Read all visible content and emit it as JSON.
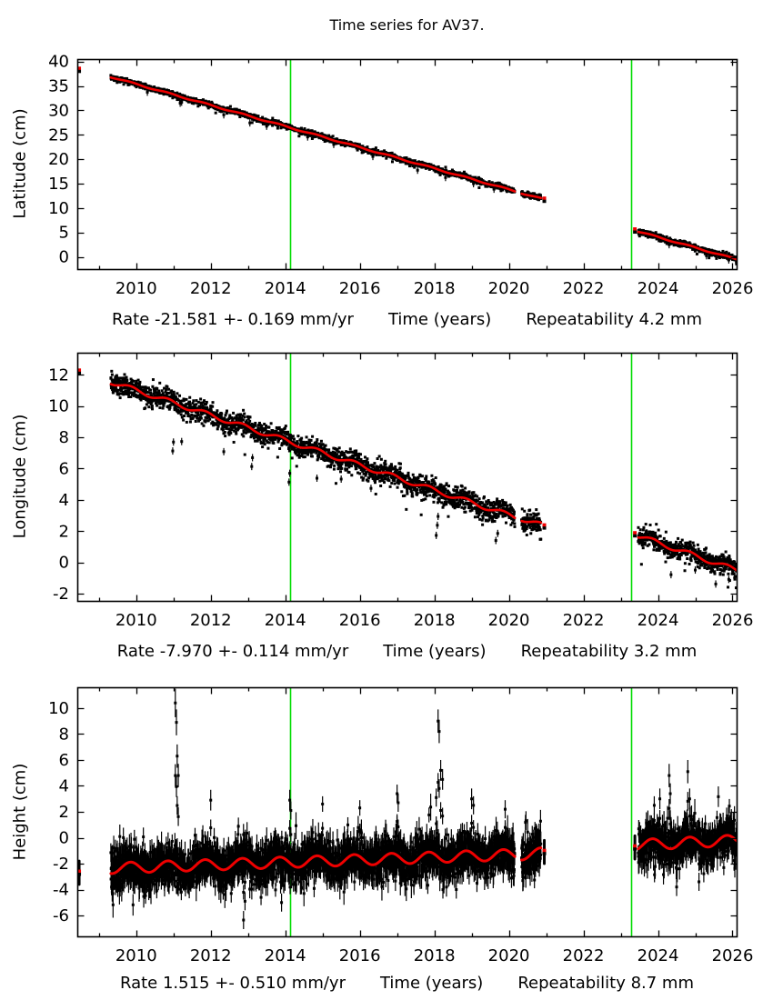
{
  "page": {
    "title": "Time series for AV37."
  },
  "colors": {
    "background": "#ffffff",
    "marker": "#000000",
    "trend": "#ee0000",
    "event_line": "#00dc00",
    "axis": "#000000"
  },
  "chart_data": [
    {
      "type": "scatter",
      "name": "latitude",
      "ylabel": "Latitude (cm)",
      "xlabel": "Time (years)",
      "footer": {
        "rate": "Rate -21.581 +- 0.169 mm/yr",
        "xlabel": "Time (years)",
        "repeatability": "Repeatability 4.2 mm"
      },
      "xlim": [
        2008.42,
        2026.11
      ],
      "ylim": [
        -2.5,
        40.5
      ],
      "xticks": [
        2010,
        2012,
        2014,
        2016,
        2018,
        2020,
        2022,
        2024,
        2026
      ],
      "x_minor_interval": 1,
      "yticks": [
        0,
        5,
        10,
        15,
        20,
        25,
        30,
        35,
        40
      ],
      "event_lines_x": [
        2014.14,
        2023.27
      ],
      "rate_mm_per_yr": -21.581,
      "rate_sigma_mm_per_yr": 0.169,
      "repeatability_mm": 4.2,
      "trend_segments": [
        {
          "t0": 2009.32,
          "t1": 2020.16,
          "v0": 36.85,
          "v1": 13.45
        },
        {
          "t0": 2020.34,
          "t1": 2020.86,
          "v0": 13.05,
          "v1": 11.95
        },
        {
          "t0": 2023.47,
          "t1": 2026.11,
          "v0": 5.2,
          "v1": -0.5
        }
      ],
      "isolated_points": [
        {
          "t": 2008.47,
          "v": 38.3
        },
        {
          "t": 2020.95,
          "v": 11.7
        },
        {
          "t": 2023.38,
          "v": 5.4
        }
      ],
      "seasonal_amplitude": 0.12,
      "seasonal_phase": 0.6,
      "noise_sigma": 0.27,
      "tail_prob": 0.012,
      "tail_mag": [
        0.4,
        1.1
      ],
      "tail_down_only": true,
      "error_bars": false,
      "outliers_rel": [
        [
          2010.3,
          -0.9
        ],
        [
          2011.18,
          -1.3
        ],
        [
          2011.22,
          -1.0
        ],
        [
          2012.35,
          -1.1
        ],
        [
          2013.05,
          -1.4
        ],
        [
          2013.5,
          -1.0
        ],
        [
          2014.6,
          -0.9
        ],
        [
          2015.3,
          -0.8
        ],
        [
          2016.35,
          -1.0
        ],
        [
          2017.55,
          -1.3
        ],
        [
          2018.3,
          -1.1
        ],
        [
          2019.05,
          -0.9
        ],
        [
          2019.6,
          -0.8
        ],
        [
          2024.3,
          -0.8
        ],
        [
          2025.3,
          -0.9
        ],
        [
          2025.9,
          -0.7
        ]
      ],
      "spikes_abs": []
    },
    {
      "type": "scatter",
      "name": "longitude",
      "ylabel": "Longitude (cm)",
      "xlabel": "Time (years)",
      "footer": {
        "rate": "Rate -7.970 +- 0.114 mm/yr",
        "xlabel": "Time (years)",
        "repeatability": "Repeatability 3.2 mm"
      },
      "xlim": [
        2008.42,
        2026.11
      ],
      "ylim": [
        -2.46,
        13.41
      ],
      "xticks": [
        2010,
        2012,
        2014,
        2016,
        2018,
        2020,
        2022,
        2024,
        2026
      ],
      "x_minor_interval": 1,
      "yticks": [
        -2,
        0,
        2,
        4,
        6,
        8,
        10,
        12
      ],
      "event_lines_x": [
        2014.14,
        2023.27
      ],
      "rate_mm_per_yr": -7.97,
      "rate_sigma_mm_per_yr": 0.114,
      "repeatability_mm": 3.2,
      "trend_segments": [
        {
          "t0": 2009.32,
          "t1": 2020.16,
          "v0": 11.55,
          "v1": 2.9
        },
        {
          "t0": 2020.34,
          "t1": 2020.86,
          "v0": 2.8,
          "v1": 2.4
        },
        {
          "t0": 2023.47,
          "t1": 2026.11,
          "v0": 1.7,
          "v1": -0.5
        }
      ],
      "isolated_points": [
        {
          "t": 2008.47,
          "v": 12.2
        },
        {
          "t": 2020.95,
          "v": 2.3
        },
        {
          "t": 2023.38,
          "v": 1.8
        }
      ],
      "seasonal_amplitude": 0.15,
      "seasonal_phase": 0.6,
      "noise_sigma": 0.33,
      "tail_prob": 0.015,
      "tail_mag": [
        0.4,
        1.3
      ],
      "tail_down_only": true,
      "error_bars": false,
      "outliers_rel": [
        [
          2010.98,
          -3.2
        ],
        [
          2011.0,
          -2.6
        ],
        [
          2011.22,
          -2.2
        ],
        [
          2012.35,
          -1.9
        ],
        [
          2013.1,
          -2.4
        ],
        [
          2013.12,
          -1.8
        ],
        [
          2014.1,
          -2.6
        ],
        [
          2014.12,
          -2.0
        ],
        [
          2014.85,
          -1.9
        ],
        [
          2015.5,
          -1.2
        ],
        [
          2016.3,
          -1.1
        ],
        [
          2018.05,
          -2.9
        ],
        [
          2018.08,
          -2.2
        ],
        [
          2018.1,
          -1.6
        ],
        [
          2019.65,
          -1.95
        ],
        [
          2019.7,
          -1.5
        ],
        [
          2024.35,
          -1.6
        ],
        [
          2025.0,
          -1.0
        ],
        [
          2025.55,
          -1.3
        ],
        [
          2025.9,
          -0.9
        ]
      ],
      "spikes_abs": []
    },
    {
      "type": "scatter",
      "name": "height",
      "ylabel": "Height (cm)",
      "xlabel": "Time (years)",
      "footer": {
        "rate": "Rate 1.515 +- 0.510 mm/yr",
        "xlabel": "Time (years)",
        "repeatability": "Repeatability 8.7 mm"
      },
      "xlim": [
        2008.42,
        2026.11
      ],
      "ylim": [
        -7.61,
        11.61
      ],
      "xticks": [
        2010,
        2012,
        2014,
        2016,
        2018,
        2020,
        2022,
        2024,
        2026
      ],
      "x_minor_interval": 1,
      "yticks": [
        -6,
        -4,
        -2,
        0,
        2,
        4,
        6,
        8,
        10
      ],
      "event_lines_x": [
        2014.14,
        2023.27
      ],
      "rate_mm_per_yr": 1.515,
      "rate_sigma_mm_per_yr": 0.51,
      "repeatability_mm": 8.7,
      "trend_segments": [
        {
          "t0": 2009.32,
          "t1": 2020.16,
          "v0": -2.35,
          "v1": -1.3
        },
        {
          "t0": 2020.34,
          "t1": 2020.86,
          "v0": -1.3,
          "v1": -1.2
        },
        {
          "t0": 2023.47,
          "t1": 2026.11,
          "v0": -0.55,
          "v1": -0.2
        }
      ],
      "isolated_points": [
        {
          "t": 2008.47,
          "v": -2.7
        },
        {
          "t": 2020.95,
          "v": -1.1
        },
        {
          "t": 2023.38,
          "v": -0.75
        }
      ],
      "seasonal_amplitude": 0.42,
      "seasonal_phase": 0.6,
      "noise_sigma": 0.75,
      "tail_prob": 0.03,
      "tail_mag": [
        0.8,
        2.2
      ],
      "tail_down_only": false,
      "error_bars": true,
      "err_range": [
        0.5,
        1.1
      ],
      "outliers_rel": [],
      "spikes_abs": [
        [
          2011.05,
          10.4,
          1.1
        ],
        [
          2011.08,
          8.9,
          1.0
        ],
        [
          2011.1,
          6.3,
          0.9
        ],
        [
          2011.13,
          4.8,
          0.9
        ],
        [
          2012.0,
          2.9,
          0.8
        ],
        [
          2012.55,
          -4.3,
          0.7
        ],
        [
          2012.88,
          -6.35,
          0.7
        ],
        [
          2012.92,
          -4.9,
          0.7
        ],
        [
          2013.35,
          -4.6,
          0.6
        ],
        [
          2013.9,
          -5.0,
          0.7
        ],
        [
          2014.12,
          2.9,
          0.8
        ],
        [
          2014.15,
          2.1,
          0.7
        ],
        [
          2015.0,
          2.6,
          0.6
        ],
        [
          2016.0,
          2.3,
          0.6
        ],
        [
          2017.0,
          3.4,
          0.7
        ],
        [
          2017.03,
          2.7,
          0.7
        ],
        [
          2018.05,
          3.1,
          0.7
        ],
        [
          2018.1,
          9.0,
          0.9
        ],
        [
          2018.13,
          8.2,
          0.9
        ],
        [
          2018.17,
          5.2,
          0.8
        ],
        [
          2018.22,
          4.5,
          0.8
        ],
        [
          2019.0,
          3.0,
          0.8
        ],
        [
          2019.05,
          2.5,
          0.7
        ],
        [
          2019.9,
          2.2,
          0.7
        ],
        [
          2023.9,
          2.5,
          0.7
        ],
        [
          2024.05,
          3.0,
          0.8
        ],
        [
          2024.3,
          4.8,
          0.9
        ],
        [
          2024.33,
          3.4,
          0.8
        ],
        [
          2024.5,
          -3.8,
          0.7
        ],
        [
          2024.8,
          5.1,
          0.9
        ],
        [
          2024.85,
          3.0,
          0.8
        ],
        [
          2025.1,
          -3.4,
          0.7
        ]
      ]
    }
  ]
}
